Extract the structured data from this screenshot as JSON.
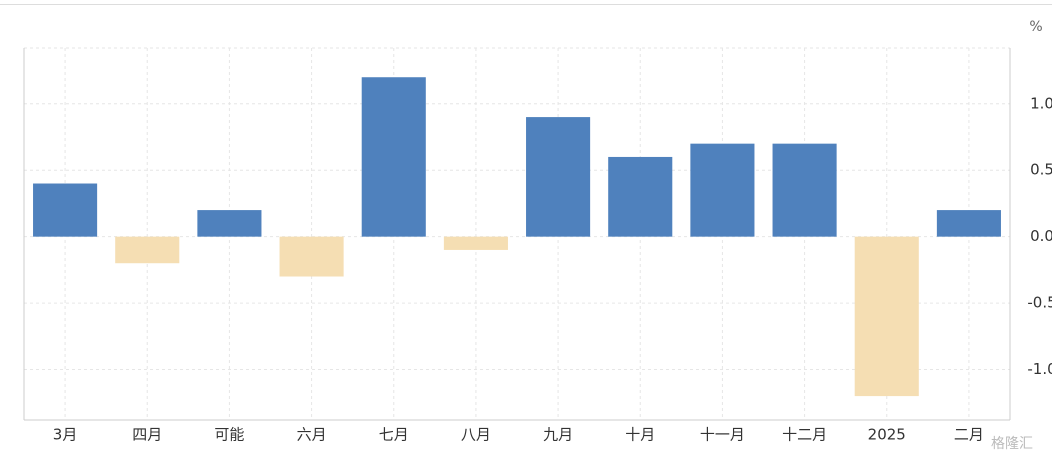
{
  "chart_data": {
    "type": "bar",
    "unit": "%",
    "categories": [
      "3月",
      "四月",
      "可能",
      "六月",
      "七月",
      "八月",
      "九月",
      "十月",
      "十一月",
      "十二月",
      "2025",
      "二月"
    ],
    "values": [
      0.4,
      -0.2,
      0.2,
      -0.3,
      1.2,
      -0.1,
      0.9,
      0.6,
      0.7,
      0.7,
      -1.2,
      0.2
    ],
    "positive_color": "#4f81bd",
    "negative_color": "#f5deb3",
    "ylim": [
      -1.38,
      1.42
    ],
    "yticks": [
      {
        "value": 1,
        "label": "1.0"
      },
      0.5,
      {
        "value": 0,
        "label": "0.0"
      },
      -0.5,
      {
        "value": -1,
        "label": "-1.0"
      }
    ],
    "grid": true,
    "watermark": "格隆汇"
  }
}
